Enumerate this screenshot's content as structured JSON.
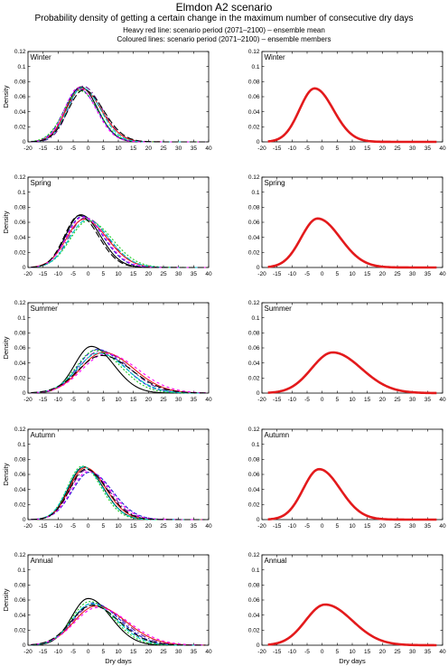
{
  "header": {
    "title": "Elmdon A2 scenario",
    "subtitle": "Probability density of getting a certain change in the maximum number of consecutive dry days",
    "legend_red": "Heavy red line: scenario period (2071–2100) – ensemble mean",
    "legend_coloured": "Coloured lines: scenario period (2071–2100) – ensemble members"
  },
  "chart_data": {
    "type": "line",
    "xlabel": "Dry days",
    "ylabel": "Density",
    "xlim": [
      -20,
      40
    ],
    "ylim": [
      0,
      0.12
    ],
    "x_ticks": [
      -20,
      -15,
      -10,
      -5,
      0,
      5,
      10,
      15,
      20,
      25,
      30,
      35,
      40
    ],
    "y_ticks": [
      0,
      0.02,
      0.04,
      0.06,
      0.08,
      0.1,
      0.12
    ],
    "y_tick_labels": [
      "0",
      "0.02",
      "0.04",
      "0.06",
      "0.08",
      "0.1",
      "0.12"
    ],
    "colors": {
      "ensemble_mean": "#e31a1c",
      "members": [
        "#000000",
        "#1f1fd0",
        "#6a1b9a",
        "#e31a1c",
        "#22cc22",
        "#00c8c8",
        "#ff00ff",
        "#000000"
      ]
    },
    "panels": [
      {
        "season": "Winter",
        "ensemble_mean": {
          "mode": -2.5,
          "peak": 0.071,
          "sd_left": 5.0,
          "sd_right": 6.2
        },
        "members": [
          {
            "mode": -2.5,
            "peak": 0.073,
            "sd_left": 4.8,
            "sd_right": 5.6
          },
          {
            "mode": -3.0,
            "peak": 0.07,
            "sd_left": 5.0,
            "sd_right": 6.0
          },
          {
            "mode": -1.8,
            "peak": 0.074,
            "sd_left": 4.7,
            "sd_right": 6.3
          },
          {
            "mode": -2.2,
            "peak": 0.071,
            "sd_left": 5.1,
            "sd_right": 6.5
          },
          {
            "mode": -2.8,
            "peak": 0.068,
            "sd_left": 5.3,
            "sd_right": 6.1
          },
          {
            "mode": -2.0,
            "peak": 0.072,
            "sd_left": 4.9,
            "sd_right": 6.0
          },
          {
            "mode": -3.2,
            "peak": 0.072,
            "sd_left": 4.6,
            "sd_right": 5.8
          },
          {
            "mode": -1.5,
            "peak": 0.069,
            "sd_left": 5.2,
            "sd_right": 6.6
          }
        ]
      },
      {
        "season": "Spring",
        "ensemble_mean": {
          "mode": -1.5,
          "peak": 0.065,
          "sd_left": 5.5,
          "sd_right": 7.5
        },
        "members": [
          {
            "mode": -2.5,
            "peak": 0.07,
            "sd_left": 5.0,
            "sd_right": 6.5
          },
          {
            "mode": -2.0,
            "peak": 0.068,
            "sd_left": 5.3,
            "sd_right": 7.0
          },
          {
            "mode": -1.0,
            "peak": 0.066,
            "sd_left": 5.5,
            "sd_right": 7.5
          },
          {
            "mode": -1.5,
            "peak": 0.064,
            "sd_left": 5.7,
            "sd_right": 7.8
          },
          {
            "mode": 0.0,
            "peak": 0.062,
            "sd_left": 6.0,
            "sd_right": 8.0
          },
          {
            "mode": -0.5,
            "peak": 0.063,
            "sd_left": 5.8,
            "sd_right": 7.6
          },
          {
            "mode": -1.8,
            "peak": 0.067,
            "sd_left": 5.4,
            "sd_right": 7.2
          },
          {
            "mode": -3.0,
            "peak": 0.069,
            "sd_left": 4.9,
            "sd_right": 6.4
          }
        ]
      },
      {
        "season": "Summer",
        "ensemble_mean": {
          "mode": 3.5,
          "peak": 0.054,
          "sd_left": 7.0,
          "sd_right": 9.5
        },
        "members": [
          {
            "mode": 1.0,
            "peak": 0.062,
            "sd_left": 5.5,
            "sd_right": 7.5
          },
          {
            "mode": 3.0,
            "peak": 0.058,
            "sd_left": 6.5,
            "sd_right": 9.0
          },
          {
            "mode": 4.0,
            "peak": 0.056,
            "sd_left": 7.0,
            "sd_right": 9.5
          },
          {
            "mode": 5.0,
            "peak": 0.054,
            "sd_left": 7.5,
            "sd_right": 10.0
          },
          {
            "mode": 2.5,
            "peak": 0.057,
            "sd_left": 6.5,
            "sd_right": 8.5
          },
          {
            "mode": 3.5,
            "peak": 0.053,
            "sd_left": 7.2,
            "sd_right": 9.2
          },
          {
            "mode": 6.0,
            "peak": 0.052,
            "sd_left": 8.0,
            "sd_right": 10.5
          },
          {
            "mode": 4.5,
            "peak": 0.05,
            "sd_left": 7.8,
            "sd_right": 10.0
          }
        ]
      },
      {
        "season": "Autumn",
        "ensemble_mean": {
          "mode": -1.0,
          "peak": 0.067,
          "sd_left": 5.3,
          "sd_right": 7.0
        },
        "members": [
          {
            "mode": -1.5,
            "peak": 0.07,
            "sd_left": 5.0,
            "sd_right": 6.5
          },
          {
            "mode": 0.5,
            "peak": 0.063,
            "sd_left": 5.8,
            "sd_right": 7.5
          },
          {
            "mode": -0.5,
            "peak": 0.066,
            "sd_left": 5.5,
            "sd_right": 7.2
          },
          {
            "mode": -1.0,
            "peak": 0.069,
            "sd_left": 5.2,
            "sd_right": 6.8
          },
          {
            "mode": -2.0,
            "peak": 0.071,
            "sd_left": 4.9,
            "sd_right": 6.3
          },
          {
            "mode": -1.8,
            "peak": 0.07,
            "sd_left": 5.0,
            "sd_right": 6.6
          },
          {
            "mode": 0.0,
            "peak": 0.064,
            "sd_left": 5.6,
            "sd_right": 7.4
          },
          {
            "mode": -0.8,
            "peak": 0.067,
            "sd_left": 5.3,
            "sd_right": 7.0
          }
        ]
      },
      {
        "season": "Annual",
        "ensemble_mean": {
          "mode": 1.0,
          "peak": 0.054,
          "sd_left": 6.5,
          "sd_right": 9.0
        },
        "members": [
          {
            "mode": 0.0,
            "peak": 0.062,
            "sd_left": 5.5,
            "sd_right": 7.5
          },
          {
            "mode": 1.5,
            "peak": 0.056,
            "sd_left": 6.5,
            "sd_right": 9.0
          },
          {
            "mode": 2.0,
            "peak": 0.054,
            "sd_left": 7.0,
            "sd_right": 9.5
          },
          {
            "mode": 2.5,
            "peak": 0.052,
            "sd_left": 7.2,
            "sd_right": 10.0
          },
          {
            "mode": 0.5,
            "peak": 0.058,
            "sd_left": 6.0,
            "sd_right": 8.0
          },
          {
            "mode": 1.0,
            "peak": 0.055,
            "sd_left": 6.4,
            "sd_right": 8.5
          },
          {
            "mode": 3.0,
            "peak": 0.05,
            "sd_left": 7.5,
            "sd_right": 10.5
          },
          {
            "mode": 1.2,
            "peak": 0.053,
            "sd_left": 6.8,
            "sd_right": 9.0
          }
        ]
      }
    ]
  }
}
